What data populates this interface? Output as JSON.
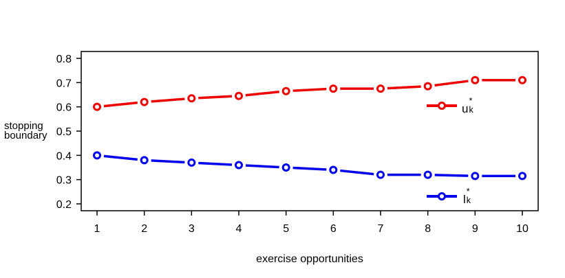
{
  "chart_data": {
    "type": "line",
    "title": "",
    "xlabel": "exercise opportunities",
    "ylabel": [
      "stopping",
      "boundary"
    ],
    "x": [
      1,
      2,
      3,
      4,
      5,
      6,
      7,
      8,
      9,
      10
    ],
    "x_tick_labels": [
      "1",
      "2",
      "3",
      "4",
      "5",
      "6",
      "7",
      "8",
      "9",
      "10"
    ],
    "y_tick_values": [
      0.2,
      0.3,
      0.4,
      0.5,
      0.6,
      0.7,
      0.8
    ],
    "y_tick_labels": [
      "0.2",
      "0.3",
      "0.4",
      "0.5",
      "0.6",
      "0.7",
      "0.8"
    ],
    "xlim": [
      1,
      10
    ],
    "ylim": [
      0.2,
      0.8
    ],
    "grid": false,
    "marker": "open-circle",
    "line_type": "both-points-and-segments",
    "legend_position": "inside-right",
    "series": [
      {
        "name": "upper-stopping-boundary",
        "legend_base": "u",
        "legend_sup": "*",
        "legend_sub": "k",
        "color": "#ee0000",
        "values": [
          0.6,
          0.62,
          0.635,
          0.645,
          0.665,
          0.675,
          0.675,
          0.685,
          0.71,
          0.71
        ]
      },
      {
        "name": "lower-stopping-boundary",
        "legend_base": "l",
        "legend_sup": "*",
        "legend_sub": "k",
        "color": "#0000ee",
        "values": [
          0.4,
          0.38,
          0.37,
          0.36,
          0.35,
          0.34,
          0.32,
          0.32,
          0.315,
          0.315
        ]
      }
    ],
    "colors": {
      "axis": "#000000",
      "text": "#000000",
      "background": "#ffffff"
    }
  }
}
